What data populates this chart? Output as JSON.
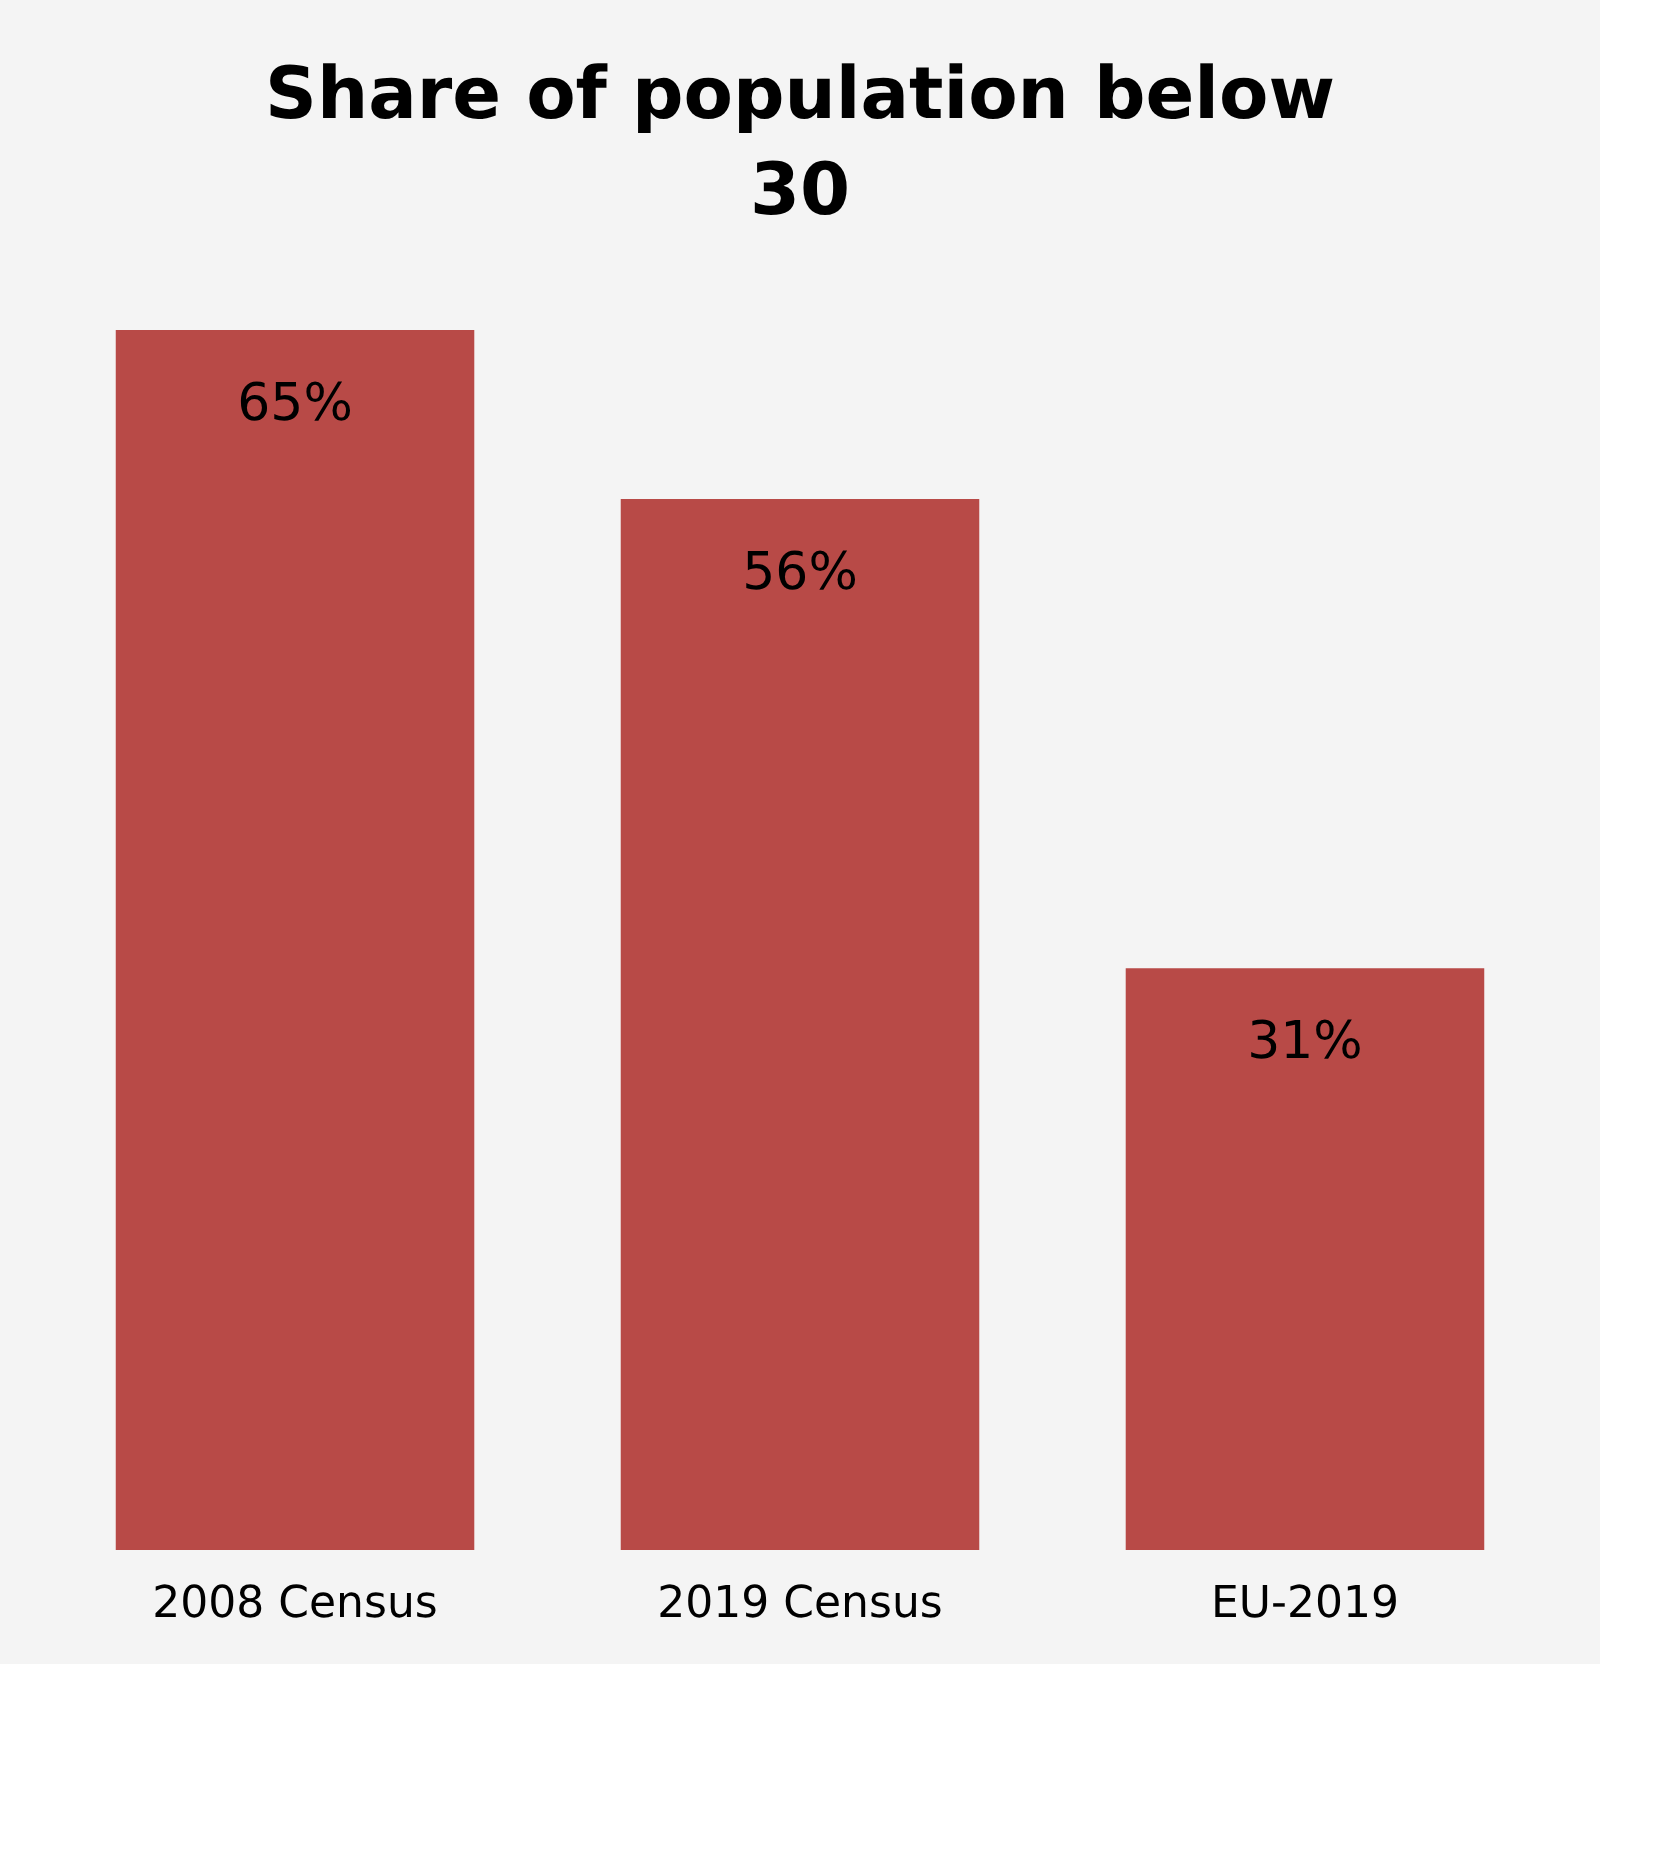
{
  "chart_data": {
    "type": "bar",
    "title": "Share of population below 30",
    "categories": [
      "2008 Census",
      "2019 Census",
      "EU-2019"
    ],
    "values": [
      65,
      56,
      31
    ],
    "value_labels": [
      "65%",
      "56%",
      "31%"
    ],
    "color": "#b84a47",
    "grid": false,
    "tick_labels": "x"
  }
}
